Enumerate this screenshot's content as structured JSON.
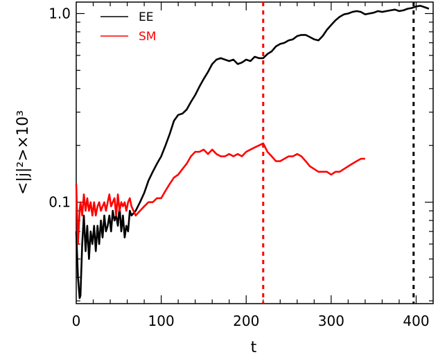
{
  "chart_data": {
    "type": "line",
    "x_scale": "linear",
    "y_scale": "log",
    "xlim": [
      0,
      420
    ],
    "ylim": [
      0.029,
      1.15
    ],
    "xlabel": "t",
    "ylabel": "<|j|²>×10³",
    "x_ticks": [
      0,
      100,
      200,
      300,
      400
    ],
    "x_tick_labels": [
      "0",
      "100",
      "200",
      "300",
      "400"
    ],
    "y_ticks": [
      0.1,
      1.0
    ],
    "y_tick_labels": [
      "0.1",
      "1.0"
    ],
    "grid": false,
    "legend_placement": "top-left",
    "series": [
      {
        "name": "EE",
        "color": "#000000",
        "x": [
          0,
          2,
          4,
          5,
          7,
          9,
          11,
          13,
          15,
          17,
          19,
          21,
          23,
          25,
          27,
          29,
          31,
          33,
          35,
          37,
          39,
          41,
          43,
          45,
          47,
          49,
          51,
          53,
          55,
          57,
          59,
          61,
          63,
          65,
          70,
          75,
          80,
          85,
          90,
          95,
          100,
          105,
          110,
          115,
          120,
          125,
          130,
          135,
          140,
          145,
          150,
          155,
          160,
          165,
          170,
          175,
          180,
          185,
          190,
          195,
          200,
          205,
          210,
          215,
          220,
          225,
          230,
          235,
          240,
          245,
          250,
          255,
          260,
          265,
          270,
          275,
          280,
          285,
          290,
          295,
          300,
          305,
          310,
          315,
          320,
          325,
          330,
          335,
          340,
          345,
          350,
          355,
          360,
          365,
          370,
          375,
          380,
          385,
          390,
          395,
          400,
          405,
          410,
          415
        ],
        "y": [
          0.07,
          0.04,
          0.031,
          0.032,
          0.06,
          0.085,
          0.055,
          0.075,
          0.05,
          0.07,
          0.06,
          0.075,
          0.055,
          0.075,
          0.06,
          0.08,
          0.065,
          0.085,
          0.07,
          0.075,
          0.085,
          0.07,
          0.09,
          0.08,
          0.085,
          0.075,
          0.095,
          0.07,
          0.085,
          0.065,
          0.075,
          0.07,
          0.09,
          0.085,
          0.09,
          0.1,
          0.112,
          0.13,
          0.145,
          0.16,
          0.175,
          0.2,
          0.23,
          0.27,
          0.29,
          0.295,
          0.31,
          0.34,
          0.37,
          0.41,
          0.45,
          0.49,
          0.54,
          0.57,
          0.58,
          0.57,
          0.56,
          0.57,
          0.54,
          0.55,
          0.57,
          0.56,
          0.59,
          0.58,
          0.58,
          0.61,
          0.63,
          0.67,
          0.69,
          0.7,
          0.72,
          0.73,
          0.76,
          0.77,
          0.77,
          0.75,
          0.73,
          0.72,
          0.76,
          0.82,
          0.87,
          0.92,
          0.96,
          0.99,
          1.0,
          1.02,
          1.03,
          1.02,
          0.99,
          1.0,
          1.01,
          1.03,
          1.02,
          1.03,
          1.04,
          1.05,
          1.03,
          1.04,
          1.06,
          1.07,
          1.09,
          1.1,
          1.08,
          1.06
        ],
        "vline_x": 397
      },
      {
        "name": "SM",
        "color": "#ff0000",
        "x": [
          0,
          2,
          4,
          5,
          7,
          9,
          11,
          13,
          15,
          17,
          19,
          21,
          23,
          25,
          27,
          29,
          31,
          33,
          35,
          37,
          39,
          41,
          43,
          45,
          47,
          49,
          51,
          53,
          55,
          57,
          59,
          61,
          63,
          65,
          70,
          75,
          80,
          85,
          90,
          95,
          100,
          105,
          110,
          115,
          120,
          125,
          130,
          135,
          140,
          145,
          150,
          155,
          160,
          165,
          170,
          175,
          180,
          185,
          190,
          195,
          200,
          205,
          210,
          215,
          220,
          225,
          230,
          235,
          240,
          245,
          250,
          255,
          260,
          265,
          270,
          275,
          280,
          285,
          290,
          295,
          300,
          305,
          310,
          315,
          320,
          325,
          330,
          335,
          340
        ],
        "y": [
          0.125,
          0.06,
          0.09,
          0.1,
          0.085,
          0.11,
          0.09,
          0.105,
          0.09,
          0.1,
          0.085,
          0.1,
          0.085,
          0.095,
          0.1,
          0.09,
          0.095,
          0.1,
          0.09,
          0.1,
          0.11,
          0.095,
          0.1,
          0.105,
          0.085,
          0.11,
          0.09,
          0.1,
          0.095,
          0.1,
          0.09,
          0.1,
          0.105,
          0.095,
          0.085,
          0.09,
          0.095,
          0.1,
          0.1,
          0.105,
          0.105,
          0.115,
          0.125,
          0.135,
          0.14,
          0.15,
          0.16,
          0.175,
          0.185,
          0.185,
          0.19,
          0.18,
          0.19,
          0.18,
          0.175,
          0.175,
          0.18,
          0.175,
          0.18,
          0.175,
          0.185,
          0.19,
          0.195,
          0.2,
          0.205,
          0.185,
          0.175,
          0.165,
          0.165,
          0.17,
          0.175,
          0.175,
          0.18,
          0.175,
          0.165,
          0.155,
          0.15,
          0.145,
          0.145,
          0.145,
          0.14,
          0.145,
          0.145,
          0.15,
          0.155,
          0.16,
          0.165,
          0.17,
          0.17
        ],
        "vline_x": 220
      }
    ]
  }
}
